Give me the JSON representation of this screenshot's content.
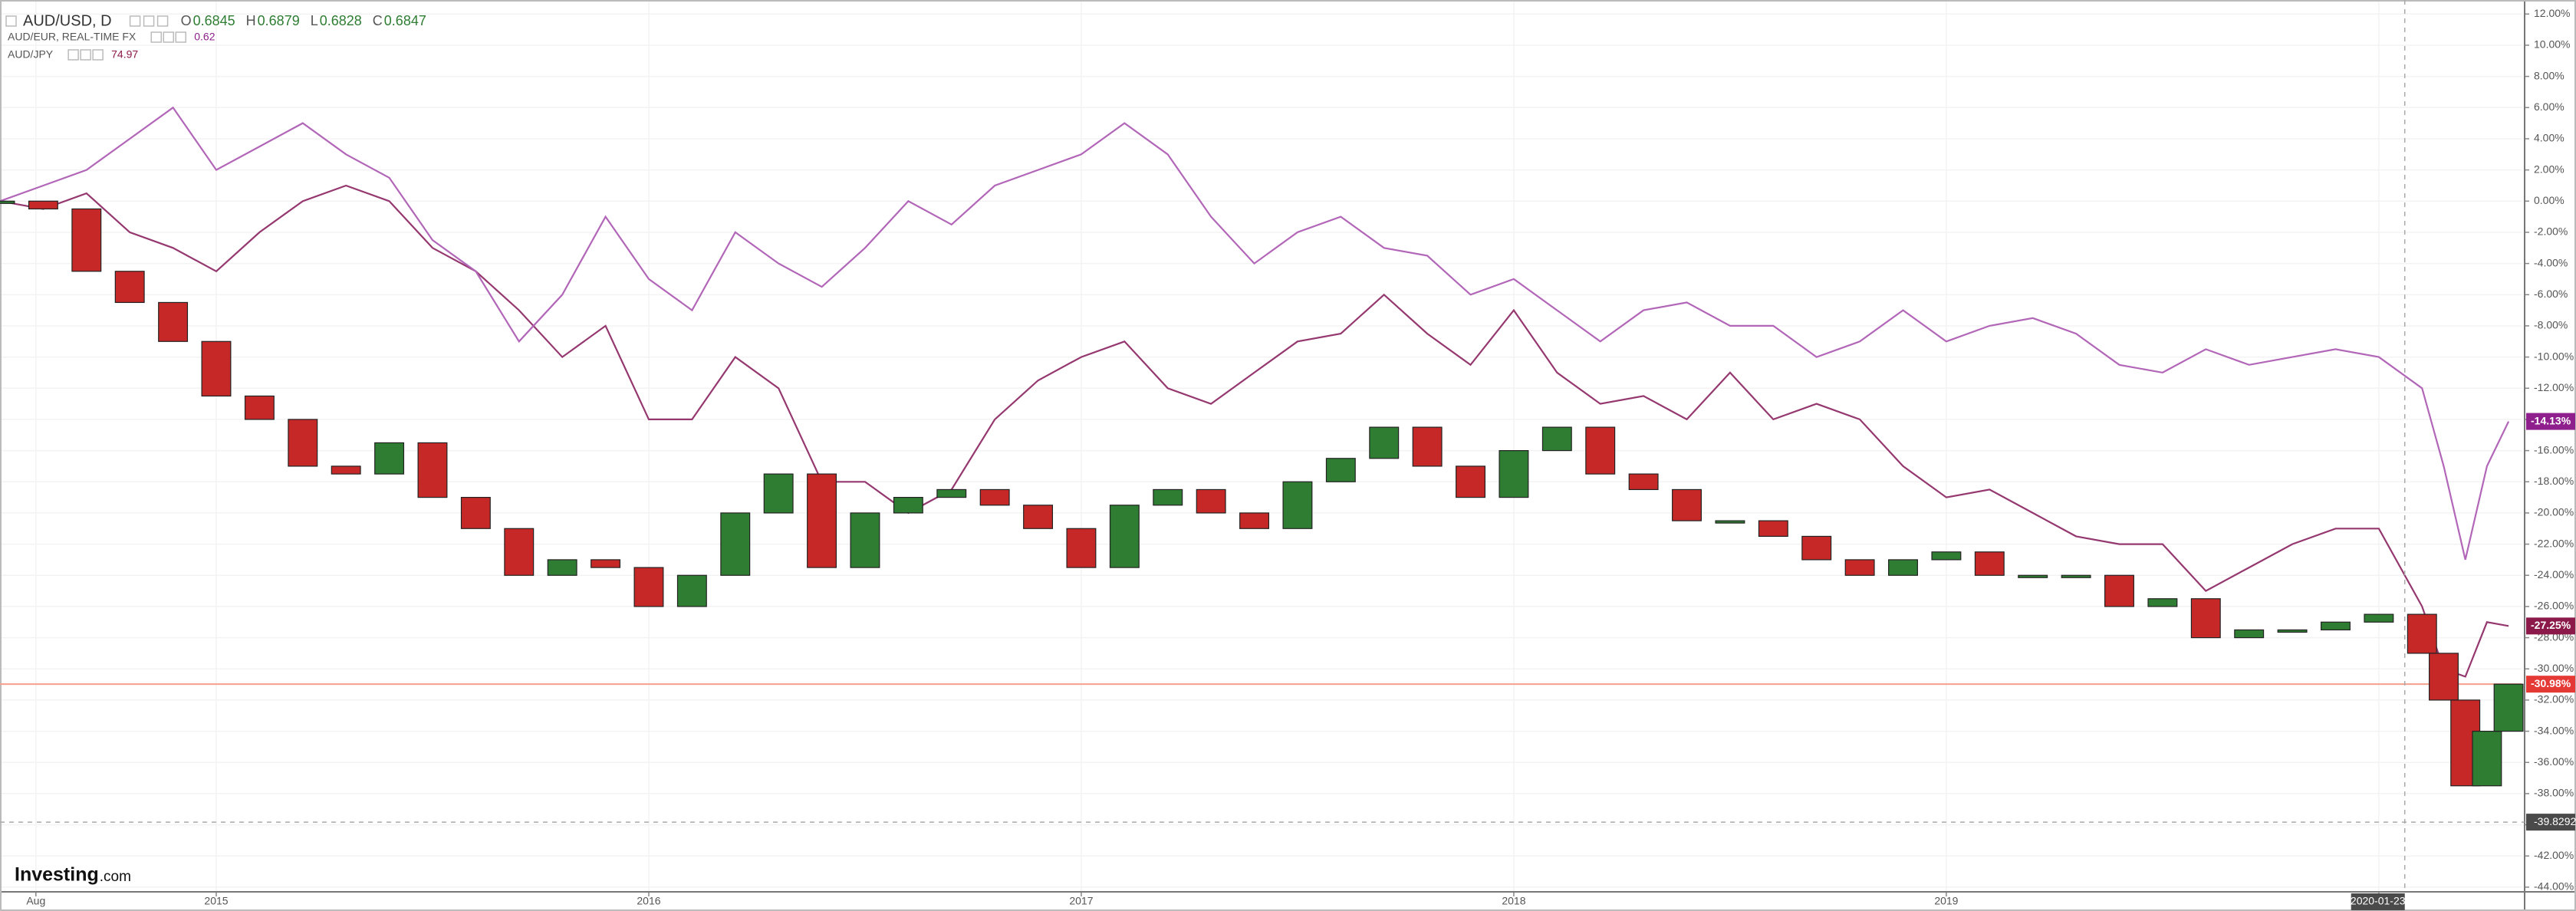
{
  "chart_data": {
    "type": "comparison",
    "x": [
      2014.5,
      2014.6,
      2014.7,
      2014.8,
      2014.9,
      2015.0,
      2015.1,
      2015.2,
      2015.3,
      2015.4,
      2015.5,
      2015.6,
      2015.7,
      2015.8,
      2015.9,
      2016.0,
      2016.1,
      2016.2,
      2016.3,
      2016.4,
      2016.5,
      2016.6,
      2016.7,
      2016.8,
      2016.9,
      2017.0,
      2017.1,
      2017.2,
      2017.3,
      2017.4,
      2017.5,
      2017.6,
      2017.7,
      2017.8,
      2017.9,
      2018.0,
      2018.1,
      2018.2,
      2018.3,
      2018.4,
      2018.5,
      2018.6,
      2018.7,
      2018.8,
      2018.9,
      2019.0,
      2019.1,
      2019.2,
      2019.3,
      2019.4,
      2019.5,
      2019.6,
      2019.7,
      2019.8,
      2019.9,
      2020.0,
      2020.1,
      2020.15,
      2020.2,
      2020.25,
      2020.3
    ],
    "series": [
      {
        "name": "AUD/USD, D",
        "style": "candle",
        "color": "#2e7d32",
        "down_color": "#c62828",
        "badge_color": "#e53935",
        "ohlc": [
          {
            "label": "O",
            "value": 0.6845
          },
          {
            "label": "H",
            "value": 0.6879
          },
          {
            "label": "L",
            "value": 0.6828
          },
          {
            "label": "C",
            "value": 0.6847
          }
        ],
        "values": [
          0,
          -0.5,
          -4.5,
          -6.5,
          -9,
          -12.5,
          -14,
          -17,
          -17.5,
          -15.5,
          -19,
          -21,
          -24,
          -23,
          -23.5,
          -26,
          -24,
          -20,
          -17.5,
          -23.5,
          -20,
          -19,
          -18.5,
          -19.5,
          -21,
          -23.5,
          -19.5,
          -18.5,
          -20,
          -21,
          -18,
          -16.5,
          -14.5,
          -17,
          -19,
          -16,
          -14.5,
          -17.5,
          -18.5,
          -20.5,
          -20.5,
          -21.5,
          -23,
          -24,
          -23,
          -22.5,
          -24,
          -24,
          -24,
          -26,
          -25.5,
          -28,
          -27.5,
          -27.5,
          -27,
          -26.5,
          -29,
          -32,
          -37.5,
          -34,
          -30.98
        ],
        "last_label": "-30.98%"
      },
      {
        "name": "AUD/EUR, REAL-TIME FX",
        "style": "line",
        "color": "#b266b8",
        "badge_color": "#8e1f8c",
        "quote": 0.62,
        "values": [
          0,
          1,
          2,
          4,
          6,
          2,
          3.5,
          5,
          3,
          1.5,
          -2.5,
          -4.5,
          -9,
          -6,
          -1,
          -5,
          -7,
          -2,
          -4,
          -5.5,
          -3,
          0,
          -1.5,
          1,
          2,
          3,
          5,
          3,
          -1,
          -4,
          -2,
          -1,
          -3,
          -3.5,
          -6,
          -5,
          -7,
          -9,
          -7,
          -6.5,
          -8,
          -8,
          -10,
          -9,
          -7,
          -9,
          -8,
          -7.5,
          -8.5,
          -10.5,
          -11,
          -9.5,
          -10.5,
          -10,
          -9.5,
          -10,
          -12,
          -17,
          -23,
          -17,
          -14.13
        ],
        "last_label": "-14.13%"
      },
      {
        "name": "AUD/JPY",
        "style": "line",
        "color": "#95386f",
        "badge_color": "#8b1a4a",
        "quote": 74.97,
        "values": [
          0,
          -0.5,
          0.5,
          -2,
          -3,
          -4.5,
          -2,
          0,
          1,
          0,
          -3,
          -4.5,
          -7,
          -10,
          -8,
          -14,
          -14,
          -10,
          -12,
          -18,
          -18,
          -20,
          -18.5,
          -14,
          -11.5,
          -10,
          -9,
          -12,
          -13,
          -11,
          -9,
          -8.5,
          -6,
          -8.5,
          -10.5,
          -7,
          -11,
          -13,
          -12.5,
          -14,
          -11,
          -14,
          -13,
          -14,
          -17,
          -19,
          -18.5,
          -20,
          -21.5,
          -22,
          -22,
          -25,
          -23.5,
          -22,
          -21,
          -21,
          -26,
          -30,
          -30.5,
          -27,
          -27.25
        ],
        "last_label": "-27.25%"
      }
    ],
    "xlim": [
      2014.5,
      2020.33
    ],
    "xticks": [
      {
        "value": 2014.583,
        "label": "Aug"
      },
      2015,
      2016,
      2017,
      2018,
      2019,
      2020
    ],
    "ylim": [
      -44.3,
      12.9
    ],
    "yticks": [
      {
        "value": 12,
        "label": "12.00%"
      },
      {
        "value": 10,
        "label": "10.00%"
      },
      {
        "value": 8,
        "label": "8.00%"
      },
      {
        "value": 6,
        "label": "6.00%"
      },
      {
        "value": 4,
        "label": "4.00%"
      },
      {
        "value": 2,
        "label": "2.00%"
      },
      {
        "value": 0,
        "label": "0.00%"
      },
      {
        "value": -2,
        "label": "-2.00%"
      },
      {
        "value": -4,
        "label": "-4.00%"
      },
      {
        "value": -6,
        "label": "-6.00%"
      },
      {
        "value": -8,
        "label": "-8.00%"
      },
      {
        "value": -10,
        "label": "-10.00%"
      },
      {
        "value": -12,
        "label": "-12.00%"
      },
      {
        "value": -14,
        "label": "-14.00%"
      },
      {
        "value": -16,
        "label": "-16.00%"
      },
      {
        "value": -18,
        "label": "-18.00%"
      },
      {
        "value": -20,
        "label": "-20.00%"
      },
      {
        "value": -22,
        "label": "-22.00%"
      },
      {
        "value": -24,
        "label": "-24.00%"
      },
      {
        "value": -26,
        "label": "-26.00%"
      },
      {
        "value": -28,
        "label": "-28.00%"
      },
      {
        "value": -30,
        "label": "-30.00%"
      },
      {
        "value": -32,
        "label": "-32.00%"
      },
      {
        "value": -34,
        "label": "-34.00%"
      },
      {
        "value": -36,
        "label": "-36.00%"
      },
      {
        "value": -38,
        "label": "-38.00%"
      },
      {
        "value": -40,
        "label": "-40.00%"
      },
      {
        "value": -42,
        "label": "-42.00%"
      },
      {
        "value": -44,
        "label": "-44.00%"
      }
    ],
    "grid": true,
    "crosshair": {
      "x": {
        "value": 2020.06,
        "label": "2020-01-23"
      },
      "y": -39.8292
    },
    "watermark": [
      "Investing",
      ".com"
    ]
  }
}
